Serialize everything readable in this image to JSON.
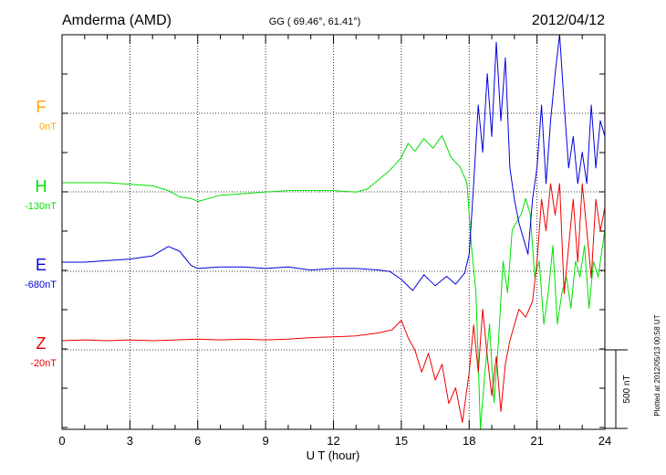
{
  "header": {
    "station": "Amderma (AMD)",
    "coords": "GG ( 69.46°,  61.41°)",
    "date": "2012/04/12"
  },
  "footer": {
    "plotted_at": "Plotted at 2012/05/13 00:58 UT"
  },
  "chart_data": {
    "type": "line",
    "xlabel": "U T (hour)",
    "xlim": [
      0,
      24
    ],
    "xticks": [
      0,
      3,
      6,
      9,
      12,
      15,
      18,
      21,
      24
    ],
    "grid": true,
    "scale_bar": {
      "label": "500 nT",
      "value_nT": 500
    },
    "series": [
      {
        "name": "F",
        "baseline": "0nT",
        "color": "#ffa500",
        "row": 0,
        "x": [],
        "y": []
      },
      {
        "name": "H",
        "baseline": "-130nT",
        "color": "#00e000",
        "row": 1,
        "x": [
          0,
          1,
          2,
          3,
          4,
          4.7,
          5.2,
          5.7,
          6,
          6.5,
          7,
          8,
          9,
          10,
          11,
          12,
          13,
          13.5,
          14,
          14.5,
          15,
          15.3,
          15.6,
          16,
          16.4,
          16.8,
          17.2,
          17.6,
          17.9,
          18.1,
          18.3,
          18.5,
          18.7,
          18.9,
          19.1,
          19.3,
          19.5,
          19.7,
          19.9,
          20.1,
          20.3,
          20.5,
          20.7,
          20.9,
          21.1,
          21.3,
          21.5,
          21.7,
          21.9,
          22.1,
          22.3,
          22.5,
          22.7,
          22.9,
          23.1,
          23.3,
          23.5,
          23.7,
          24
        ],
        "y": [
          0,
          0,
          0,
          -10,
          -20,
          -50,
          -90,
          -100,
          -120,
          -100,
          -80,
          -70,
          -60,
          -50,
          -50,
          -50,
          -60,
          -40,
          20,
          80,
          160,
          250,
          200,
          280,
          220,
          300,
          160,
          100,
          0,
          -400,
          -700,
          -1600,
          -1200,
          -900,
          -1400,
          -1000,
          -500,
          -700,
          -300,
          -250,
          -200,
          -100,
          -200,
          -600,
          -500,
          -900,
          -700,
          -400,
          -900,
          -700,
          -600,
          -800,
          -500,
          -600,
          -400,
          -800,
          -500,
          -600,
          -300
        ]
      },
      {
        "name": "E",
        "baseline": "-680nT",
        "color": "#0000dd",
        "row": 2,
        "x": [
          0,
          1,
          2,
          3,
          4,
          4.7,
          5.2,
          5.7,
          6,
          7,
          8,
          9,
          10,
          11,
          12,
          13,
          14,
          14.5,
          15,
          15.5,
          16,
          16.5,
          17,
          17.4,
          17.8,
          18,
          18.2,
          18.4,
          18.6,
          18.8,
          19,
          19.2,
          19.4,
          19.6,
          19.8,
          20,
          20.2,
          20.4,
          20.6,
          20.8,
          21,
          21.2,
          21.4,
          21.6,
          21.8,
          22,
          22.2,
          22.4,
          22.6,
          22.8,
          23,
          23.2,
          23.4,
          23.6,
          23.8,
          24
        ],
        "y": [
          0,
          0,
          10,
          20,
          40,
          100,
          70,
          -20,
          -40,
          -30,
          -30,
          -40,
          -30,
          -50,
          -40,
          -40,
          -50,
          -60,
          -110,
          -180,
          -80,
          -150,
          -90,
          -140,
          -70,
          50,
          500,
          1000,
          700,
          1200,
          800,
          1400,
          900,
          1300,
          600,
          400,
          250,
          150,
          50,
          400,
          600,
          1000,
          500,
          900,
          1200,
          1600,
          1000,
          600,
          800,
          500,
          700,
          500,
          1000,
          600,
          900,
          800
        ]
      },
      {
        "name": "Z",
        "baseline": "-20nT",
        "color": "#ee0000",
        "row": 3,
        "x": [
          0,
          1,
          2,
          3,
          4,
          5,
          6,
          7,
          8,
          9,
          10,
          11,
          12,
          13,
          14,
          14.6,
          15,
          15.3,
          15.6,
          15.9,
          16.2,
          16.5,
          16.8,
          17.1,
          17.4,
          17.7,
          18,
          18.2,
          18.4,
          18.6,
          18.8,
          19,
          19.2,
          19.4,
          19.6,
          19.8,
          20,
          20.2,
          20.5,
          20.8,
          21,
          21.2,
          21.4,
          21.6,
          21.8,
          22,
          22.2,
          22.4,
          22.6,
          22.8,
          23,
          23.2,
          23.4,
          23.6,
          23.8,
          24
        ],
        "y": [
          0,
          5,
          0,
          5,
          0,
          5,
          10,
          5,
          10,
          5,
          10,
          20,
          25,
          30,
          50,
          70,
          130,
          20,
          -60,
          -200,
          -80,
          -250,
          -150,
          -400,
          -300,
          -520,
          -200,
          100,
          -200,
          200,
          -100,
          -350,
          -100,
          -450,
          -150,
          0,
          100,
          200,
          150,
          250,
          500,
          900,
          700,
          1000,
          800,
          1000,
          300,
          600,
          900,
          500,
          1000,
          700,
          400,
          900,
          700,
          850
        ]
      }
    ]
  }
}
